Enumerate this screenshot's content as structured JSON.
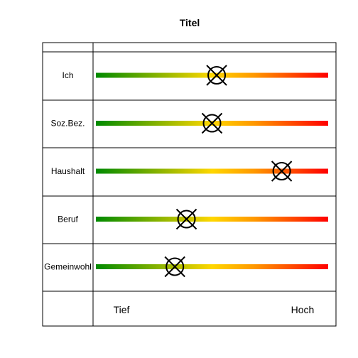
{
  "chart_data": {
    "type": "table",
    "title": "Titel",
    "scale_low_label": "Tief",
    "scale_high_label": "Hoch",
    "x_range": [
      0,
      1
    ],
    "colors": {
      "low": "#008a00",
      "mid": "#ffd700",
      "midhigh": "#ff9900",
      "high": "#ff0000"
    },
    "rows": [
      {
        "label": "Ich",
        "value": 0.52
      },
      {
        "label": "Soz.Bez.",
        "value": 0.5
      },
      {
        "label": "Haushalt",
        "value": 0.8
      },
      {
        "label": "Beruf",
        "value": 0.39
      },
      {
        "label": "Gemeinwohl",
        "value": 0.34
      }
    ]
  }
}
